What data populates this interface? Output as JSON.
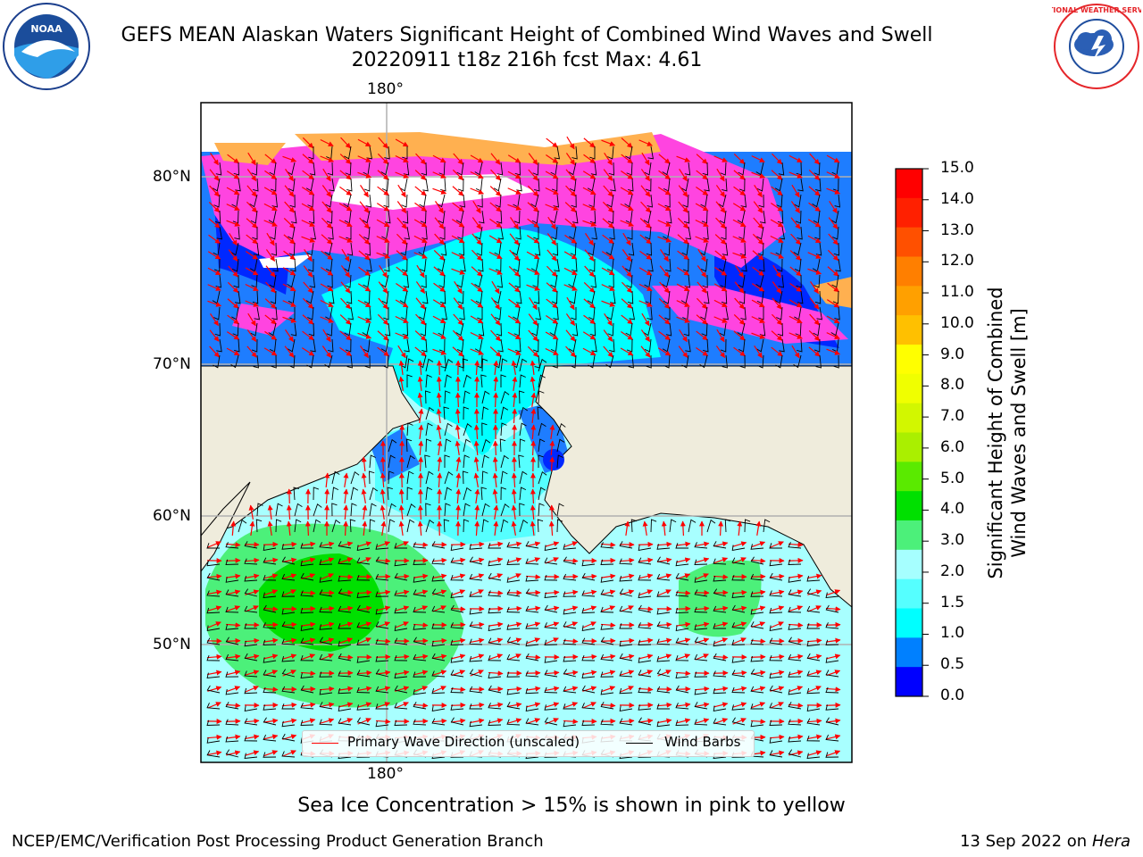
{
  "header": {
    "title_line1": "GEFS MEAN Alaskan Waters Significant Height of Combined Wind Waves and Swell",
    "title_line2": "20220911 t18z 216h fcst   Max: 4.61"
  },
  "logos": {
    "left": {
      "icon": "noaa-logo-icon",
      "text": "NOAA"
    },
    "right": {
      "icon": "nws-logo-icon",
      "text": "NATIONAL WEATHER SERVICE"
    }
  },
  "map": {
    "lon_label_top": "180°",
    "lon_label_bottom": "180°",
    "lat_labels": [
      "80°N",
      "70°N",
      "60°N",
      "50°N"
    ],
    "ocean_color": "#a8ffff",
    "land_color": "#efecdc",
    "arrow_color": "#ff0000",
    "barb_color": "#000000"
  },
  "legend": {
    "wave_direction": "Primary Wave Direction (unscaled)",
    "wind_barbs": "Wind Barbs"
  },
  "colorbar": {
    "title_line1": "Significant Height of Combined",
    "title_line2": "Wind Waves and Swell [m]",
    "tick_labels": [
      "15.0",
      "14.0",
      "13.0",
      "12.0",
      "11.0",
      "10.0",
      "9.0",
      "8.0",
      "7.0",
      "6.0",
      "5.0",
      "4.0",
      "3.0",
      "2.0",
      "1.5",
      "1.0",
      "0.5",
      "0.0"
    ],
    "colors_top_to_bottom": [
      "#ff0000",
      "#ff2000",
      "#ff5000",
      "#ff7f00",
      "#ffa000",
      "#ffc000",
      "#ffff00",
      "#f0ff00",
      "#d2f700",
      "#aaef00",
      "#5aea00",
      "#00e000",
      "#4cf07a",
      "#a6ffff",
      "#55ffff",
      "#00ffff",
      "#0080ff",
      "#0000ff"
    ]
  },
  "subtitle": "Sea Ice Concentration > 15% is shown in pink to yellow",
  "footer": {
    "left": "NCEP/EMC/Verification Post Processing Product Generation Branch",
    "right_date": "13 Sep 2022 on",
    "right_host": "Hera"
  }
}
